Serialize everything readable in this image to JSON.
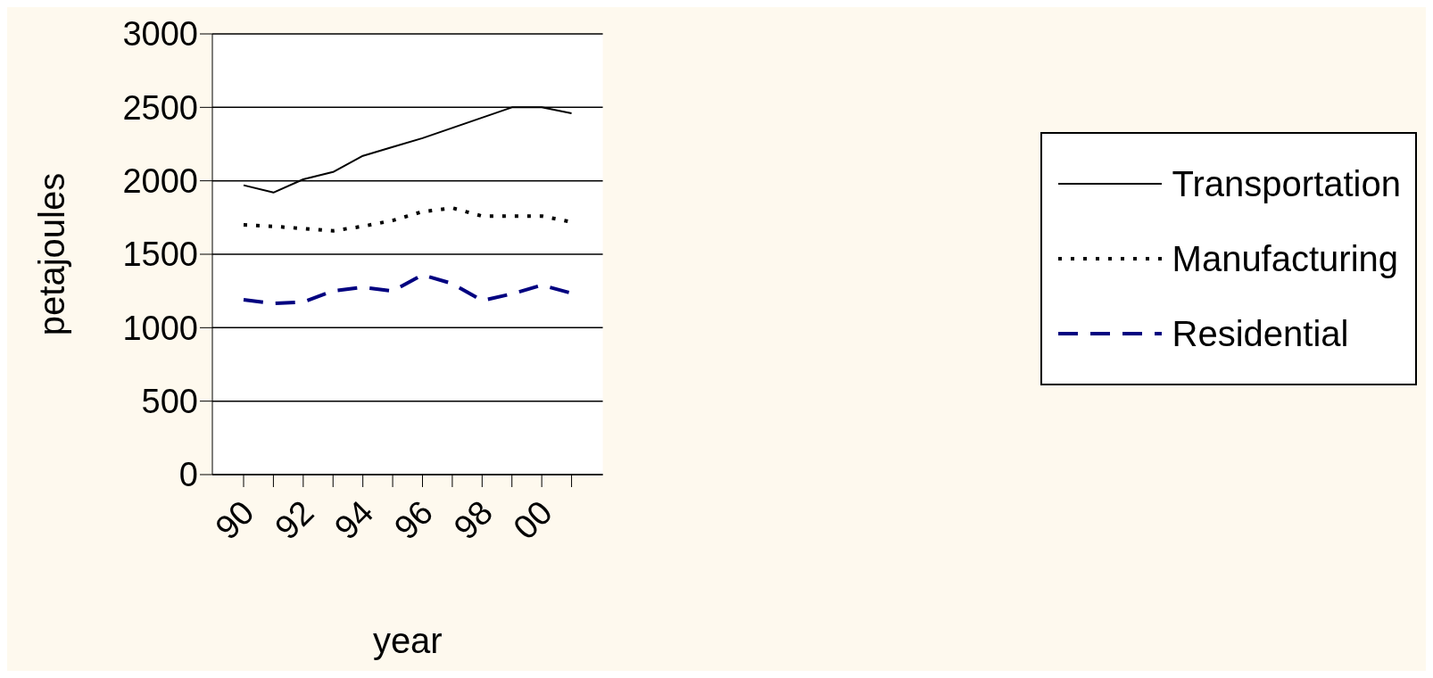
{
  "chart_data": {
    "type": "line",
    "xlabel": "year",
    "ylabel": "petajoules",
    "categories": [
      "90",
      null,
      "92",
      null,
      "94",
      null,
      "96",
      null,
      "98",
      null,
      "00",
      null
    ],
    "series": [
      {
        "name": "Transportation",
        "color": "#000000",
        "line_style": "solid",
        "values": [
          1970,
          1920,
          2010,
          2060,
          2170,
          2230,
          2290,
          2360,
          2430,
          2500,
          2500,
          2460
        ]
      },
      {
        "name": "Manufacturing",
        "color": "#000000",
        "line_style": "dotted",
        "values": [
          1700,
          1690,
          1675,
          1660,
          1690,
          1730,
          1790,
          1815,
          1760,
          1760,
          1760,
          1720
        ]
      },
      {
        "name": "Residential",
        "color": "#000080",
        "line_style": "dashed",
        "values": [
          1190,
          1165,
          1175,
          1250,
          1275,
          1250,
          1360,
          1300,
          1185,
          1230,
          1290,
          1235
        ]
      }
    ],
    "ylim": [
      0,
      3000
    ],
    "yticks": [
      0,
      500,
      1000,
      1500,
      2000,
      2500,
      3000
    ],
    "grid": "y",
    "legend": "right",
    "marker": "none"
  }
}
